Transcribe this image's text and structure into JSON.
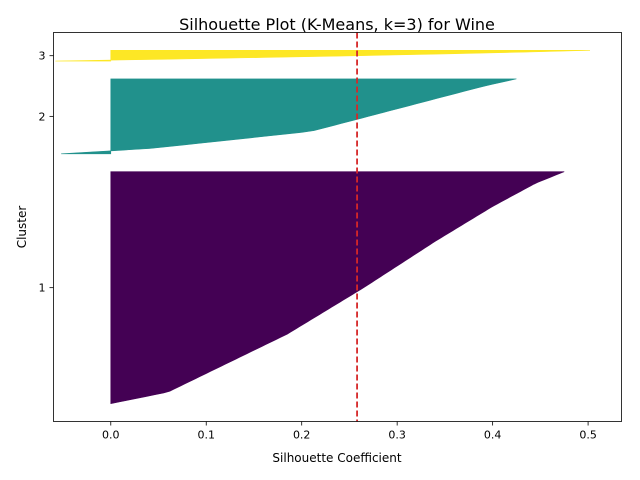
{
  "chart_data": {
    "type": "silhouette",
    "title": "Silhouette Plot (K-Means, k=3) for Wine",
    "xlabel": "Silhouette Coefficient",
    "ylabel": "Cluster",
    "xlim": [
      -0.06,
      0.535
    ],
    "x_ticks": [
      "0.0",
      "0.1",
      "0.2",
      "0.3",
      "0.4",
      "0.5"
    ],
    "x_tick_values": [
      0.0,
      0.1,
      0.2,
      0.3,
      0.4,
      0.5
    ],
    "y_ticks": [
      "1",
      "2",
      "3"
    ],
    "grid": false,
    "average_silhouette": 0.258,
    "average_line_color": "#d62728",
    "clusters": [
      {
        "name": "1",
        "color": "#440154",
        "size": 130,
        "profile": [
          [
            0,
            0.475
          ],
          [
            0.05,
            0.445
          ],
          [
            0.15,
            0.4
          ],
          [
            0.3,
            0.34
          ],
          [
            0.5,
            0.265
          ],
          [
            0.7,
            0.185
          ],
          [
            0.85,
            0.11
          ],
          [
            0.95,
            0.06
          ],
          [
            1,
            0.0
          ]
        ]
      },
      {
        "name": "2",
        "color": "#21918c",
        "size": 42,
        "profile": [
          [
            0,
            0.425
          ],
          [
            0.1,
            0.39
          ],
          [
            0.3,
            0.33
          ],
          [
            0.5,
            0.27
          ],
          [
            0.7,
            0.21
          ],
          [
            0.85,
            0.1
          ],
          [
            0.93,
            0.04
          ],
          [
            0.96,
            0.0
          ],
          [
            1,
            -0.052
          ]
        ]
      },
      {
        "name": "3",
        "color": "#fde725",
        "size": 6,
        "profile": [
          [
            0,
            0.502
          ],
          [
            0.2,
            0.42
          ],
          [
            0.5,
            0.26
          ],
          [
            0.8,
            0.08
          ],
          [
            0.9,
            0.0
          ],
          [
            1,
            -0.058
          ]
        ]
      }
    ]
  }
}
